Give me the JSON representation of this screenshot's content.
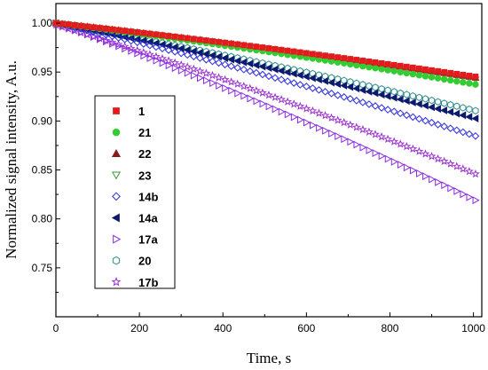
{
  "chart_data": {
    "type": "scatter",
    "title": "",
    "xlabel": "Time, s",
    "ylabel": "Normalized signal intensity, A.u.",
    "xlim": [
      0,
      1020
    ],
    "ylim": [
      0.7,
      1.02
    ],
    "x_ticks": [
      "0",
      "200",
      "400",
      "600",
      "800",
      "1000"
    ],
    "y_ticks": [
      "0.75",
      "0.80",
      "0.85",
      "0.90",
      "0.95",
      "1.00"
    ],
    "x_tick_values": [
      0,
      200,
      400,
      600,
      800,
      1000
    ],
    "y_tick_values": [
      0.75,
      0.8,
      0.85,
      0.9,
      0.95,
      1.0
    ],
    "grid": false,
    "legend_position": "left-center",
    "x_range": [
      0,
      1010
    ],
    "x_step": 15,
    "series": [
      {
        "name": "1",
        "marker": "square",
        "color": "#e41a1c",
        "filled": true,
        "y_start": 1.0,
        "y_end": 0.945
      },
      {
        "name": "21",
        "marker": "circle",
        "color": "#33cc33",
        "filled": true,
        "y_start": 1.0,
        "y_end": 0.937
      },
      {
        "name": "22",
        "marker": "triangle-up",
        "color": "#8b1a1a",
        "filled": true,
        "y_start": 1.0,
        "y_end": 0.944
      },
      {
        "name": "23",
        "marker": "triangle-down",
        "color": "#3a9a3a",
        "filled": false,
        "y_start": 1.0,
        "y_end": 0.942
      },
      {
        "name": "14b",
        "marker": "diamond",
        "color": "#2b2bd6",
        "filled": false,
        "y_start": 1.0,
        "y_end": 0.884
      },
      {
        "name": "14a",
        "marker": "triangle-left",
        "color": "#0b1a6e",
        "filled": true,
        "y_start": 1.0,
        "y_end": 0.902
      },
      {
        "name": "17a",
        "marker": "triangle-right",
        "color": "#8a2be2",
        "filled": false,
        "y_start": 1.0,
        "y_end": 0.818
      },
      {
        "name": "20",
        "marker": "hexagon",
        "color": "#2e8b8b",
        "filled": false,
        "y_start": 1.0,
        "y_end": 0.91
      },
      {
        "name": "17b",
        "marker": "star",
        "color": "#9932cc",
        "filled": false,
        "y_start": 0.998,
        "y_end": 0.845
      }
    ]
  }
}
